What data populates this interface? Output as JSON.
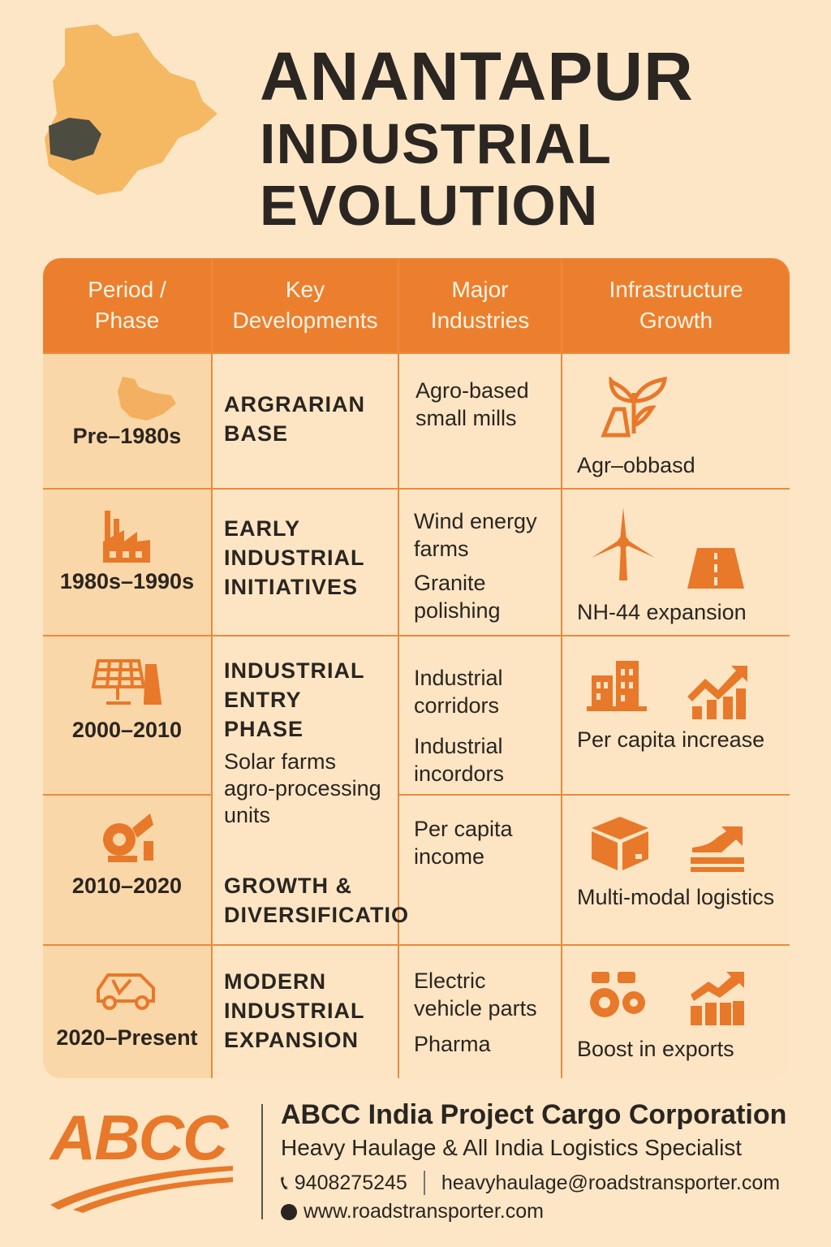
{
  "title": {
    "line1": "ANANTAPUR",
    "line2": "INDUSTRIAL",
    "line3": "EVOLUTION"
  },
  "colors": {
    "accent": "#ec7f2e",
    "background": "#fce6c6",
    "map": "#f5b863",
    "highlight": "#4a4a3e"
  },
  "table": {
    "headers": [
      "Period / Phase",
      "Key Developments",
      "Major Industries",
      "Infrastructure Growth"
    ],
    "rows": [
      {
        "period": "Pre–1980s",
        "period_icon": "map-icon",
        "development": "ARGRARIAN BASE",
        "industries": [
          "Agro-based small mills"
        ],
        "infra_icons": [
          "plant-icon"
        ],
        "infra": "Agr–obbasd"
      },
      {
        "period": "1980s–1990s",
        "period_icon": "factory-icon",
        "development": "EARLY INDUSTRIAL INITIATIVES",
        "industries": [
          "Wind energy farms",
          "Granite polishing"
        ],
        "infra_icons": [
          "wind-turbine-icon",
          "road-icon"
        ],
        "infra": "NH-44 expansion"
      },
      {
        "period": "2000–2010",
        "period_icon": "solar-panel-icon",
        "development": "INDUSTRIAL ENTRY PHASE",
        "development_sub": "Solar farms agro-processing units",
        "industries": [
          "Industrial corridors",
          "Industrial incordors"
        ],
        "infra_icons": [
          "buildings-icon",
          "growth-chart-icon"
        ],
        "infra": "Per capita increase"
      },
      {
        "period": "2010–2020",
        "period_icon": "machinery-icon",
        "development": "GROWTH & DIVERSIFICATIO",
        "industries": [
          "Per capita income"
        ],
        "infra_icons": [
          "package-icon",
          "shipping-icon"
        ],
        "infra": "Multi-modal logistics"
      },
      {
        "period": "2020–Present",
        "period_icon": "car-icon",
        "development": "MODERN INDUSTRIAL EXPANSION",
        "industries": [
          "Electric vehicle parts",
          "Pharma"
        ],
        "infra_icons": [
          "gears-icon",
          "export-chart-icon"
        ],
        "infra": "Boost in exports"
      }
    ]
  },
  "footer": {
    "logo": "ABCC",
    "company": "ABCC India Project Cargo Corporation",
    "tagline": "Heavy Haulage & All India Logistics Specialist",
    "phone": "9408275245",
    "email": "heavyhaulage@roadstransporter.com",
    "website": "www.roadstransporter.com"
  }
}
